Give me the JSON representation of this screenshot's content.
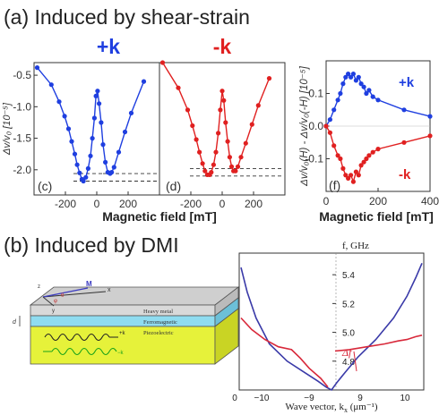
{
  "section_a": {
    "title": "(a) Induced by shear-strain"
  },
  "section_b": {
    "title": "(b) Induced by DMI"
  },
  "colors": {
    "plus": "#1f3fe0",
    "minus": "#e02020",
    "dmi_red": "#d8283a",
    "dmi_blue": "#3a3aa8",
    "glass": "#dcdcdc",
    "ferro": "#8fdcf0",
    "piezo": "#e6f23a"
  },
  "chart_data": [
    {
      "type": "line",
      "panel": "c",
      "header": "+k",
      "header_color": "#1f3fe0",
      "xlabel": "Magnetic field [mT]",
      "ylabel": "Δv/v₀ [10⁻⁵]",
      "xlim": [
        -400,
        400
      ],
      "ylim": [
        -2.4,
        -0.3
      ],
      "xticks": [
        "-200",
        "0",
        "200"
      ],
      "yticks": [
        "-0.5",
        "-1.0",
        "-1.5",
        "-2.0"
      ],
      "ytick_values": [
        -0.5,
        -1.0,
        -1.5,
        -2.0
      ],
      "xtick_values": [
        -200,
        0,
        200
      ],
      "dashed_levels": [
        -2.06,
        -2.18
      ],
      "series": [
        {
          "color": "#1f3fe0",
          "x": [
            -380,
            -290,
            -240,
            -205,
            -180,
            -160,
            -140,
            -125,
            -110,
            -95,
            -85,
            -70,
            -55,
            -40,
            -28,
            -15,
            -5,
            5,
            15,
            28,
            40,
            55,
            70,
            85,
            95,
            110,
            140,
            180,
            220,
            300
          ],
          "y": [
            -0.38,
            -0.65,
            -0.92,
            -1.15,
            -1.35,
            -1.55,
            -1.75,
            -1.92,
            -2.05,
            -2.15,
            -2.18,
            -2.12,
            -1.98,
            -1.78,
            -1.5,
            -1.18,
            -0.83,
            -0.75,
            -0.95,
            -1.25,
            -1.6,
            -1.88,
            -2.04,
            -2.06,
            -2.04,
            -1.96,
            -1.72,
            -1.4,
            -1.1,
            -0.6
          ]
        }
      ]
    },
    {
      "type": "line",
      "panel": "d",
      "header": "-k",
      "header_color": "#e02020",
      "xlabel": "",
      "xlim": [
        -400,
        400
      ],
      "ylim": [
        -2.4,
        -0.3
      ],
      "xticks": [
        "-200",
        "0",
        "200"
      ],
      "xtick_values": [
        -200,
        0,
        200
      ],
      "dashed_levels": [
        -1.98,
        -2.1
      ],
      "series": [
        {
          "color": "#e02020",
          "x": [
            -380,
            -280,
            -220,
            -190,
            -165,
            -145,
            -125,
            -110,
            -95,
            -80,
            -70,
            -55,
            -40,
            -25,
            -12,
            0,
            10,
            22,
            35,
            48,
            60,
            72,
            85,
            100,
            120,
            150,
            190,
            230,
            300
          ],
          "y": [
            -0.3,
            -0.7,
            -1.05,
            -1.3,
            -1.52,
            -1.72,
            -1.9,
            -2.02,
            -2.08,
            -2.08,
            -2.04,
            -1.92,
            -1.72,
            -1.42,
            -1.05,
            -0.75,
            -0.9,
            -1.25,
            -1.55,
            -1.8,
            -1.95,
            -2.02,
            -2.02,
            -1.95,
            -1.8,
            -1.58,
            -1.28,
            -0.98,
            -0.55
          ]
        }
      ]
    },
    {
      "type": "line",
      "panel": "f",
      "xlabel": "Magnetic field [mT]",
      "ylabel": "Δv/v₀(H) - Δv/v₀(-H) [10⁻⁵]",
      "xlim": [
        0,
        400
      ],
      "ylim": [
        -0.2,
        0.2
      ],
      "xticks": [
        "0",
        "200",
        "400"
      ],
      "xtick_values": [
        0,
        200,
        400
      ],
      "yticks": [
        "0.1",
        "0.0",
        "-0.1"
      ],
      "ytick_values": [
        0.1,
        0.0,
        -0.1
      ],
      "series": [
        {
          "name": "+k",
          "color": "#1f3fe0",
          "x": [
            0,
            15,
            30,
            45,
            55,
            65,
            75,
            85,
            95,
            105,
            115,
            125,
            135,
            145,
            155,
            165,
            180,
            200,
            300,
            400
          ],
          "y": [
            0.0,
            0.02,
            0.05,
            0.08,
            0.1,
            0.13,
            0.15,
            0.16,
            0.15,
            0.16,
            0.14,
            0.15,
            0.13,
            0.12,
            0.1,
            0.11,
            0.09,
            0.08,
            0.05,
            0.03
          ]
        },
        {
          "name": "-k",
          "color": "#e02020",
          "x": [
            0,
            15,
            30,
            45,
            55,
            65,
            75,
            85,
            95,
            105,
            115,
            125,
            135,
            145,
            155,
            165,
            180,
            200,
            300,
            400
          ],
          "y": [
            0.0,
            -0.02,
            -0.06,
            -0.09,
            -0.1,
            -0.13,
            -0.15,
            -0.16,
            -0.15,
            -0.17,
            -0.14,
            -0.15,
            -0.12,
            -0.11,
            -0.1,
            -0.09,
            -0.08,
            -0.07,
            -0.05,
            -0.03
          ]
        }
      ]
    },
    {
      "type": "line",
      "panel": "dispersion",
      "ylabel": "f, GHz",
      "xlabel": "Wave vector, k",
      "xlabel_sub": "x",
      "xlabel_unit": " (μm⁻¹)",
      "xlim": [
        -10.4,
        10.4
      ],
      "ylim": [
        4.6,
        5.55
      ],
      "xticks": [
        "0",
        "−10",
        "−9",
        "9",
        "10"
      ],
      "yticks": [
        "5.4",
        "5.2",
        "5.0",
        "4.8"
      ],
      "ytick_values": [
        5.4,
        5.2,
        5.0,
        4.8
      ],
      "annotation": "Δf",
      "series": [
        {
          "color": "#3a3aa8",
          "x": [
            -10.2,
            -9.5,
            -8.5,
            -7.0,
            -5.0,
            -3.0,
            -1.5,
            -0.6,
            0,
            0.6,
            1.5,
            3.0,
            5.0,
            7.0,
            8.5,
            9.5,
            10.2
          ],
          "y": [
            5.45,
            5.28,
            5.1,
            4.92,
            4.8,
            4.72,
            4.66,
            4.62,
            4.6,
            4.65,
            4.72,
            4.83,
            4.95,
            5.1,
            5.25,
            5.38,
            5.48
          ]
        },
        {
          "color": "#d8283a",
          "x": [
            -10.2,
            -9.0,
            -7.5,
            -6.0,
            -4.5,
            -3.5,
            -2.5,
            -1.2,
            -0.4
          ],
          "y": [
            5.1,
            5.02,
            4.95,
            4.9,
            4.88,
            4.82,
            4.75,
            4.68,
            4.62
          ]
        },
        {
          "color": "#d8283a",
          "x": [
            0.4,
            2.0,
            4.0,
            6.0,
            7.5,
            8.5,
            9.5,
            10.2
          ],
          "y": [
            4.87,
            4.88,
            4.9,
            4.92,
            4.94,
            4.95,
            4.97,
            4.98
          ]
        }
      ]
    }
  ],
  "schematic": {
    "layers": [
      "Heavy metal",
      "Ferromagnetic",
      "Piezoelectric"
    ],
    "vector_labels": [
      "M",
      "θ",
      "φ",
      "x",
      "y",
      "z"
    ],
    "dimension_label": "d",
    "wave_labels": [
      "+k",
      "−k"
    ]
  }
}
